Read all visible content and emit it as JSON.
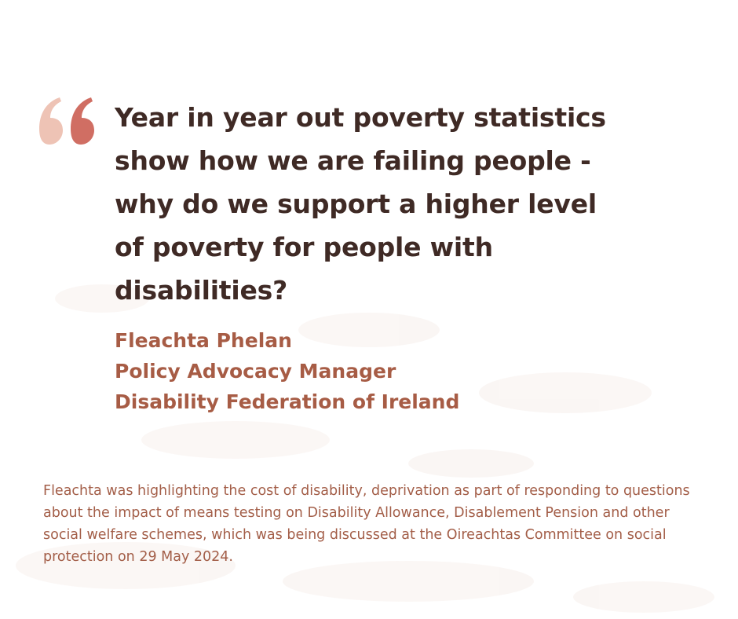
{
  "quote": {
    "text": "Year in year out poverty statistics show how we are failing people - why do we support a higher level of poverty for people with disabilities?"
  },
  "attribution": {
    "name": "Fleachta Phelan",
    "role": "Policy Advocacy Manager",
    "organisation": "Disability Federation of Ireland"
  },
  "context": {
    "text": "Fleachta was highlighting the cost of disability, deprivation as part of responding to questions about the impact of means testing on Disability Allowance, Disablement Pension and other social welfare schemes, which was being discussed at the Oireachtas Committee on social protection on 29 May 2024."
  },
  "colors": {
    "background": "#ffffff",
    "quote_text": "#3f2a25",
    "attribution": "#a75c45",
    "context": "#a35e48",
    "quote_mark_light": "#eec3b5",
    "quote_mark_dark": "#d06e63"
  },
  "icons": {
    "quote_mark": "open-quote-icon"
  }
}
